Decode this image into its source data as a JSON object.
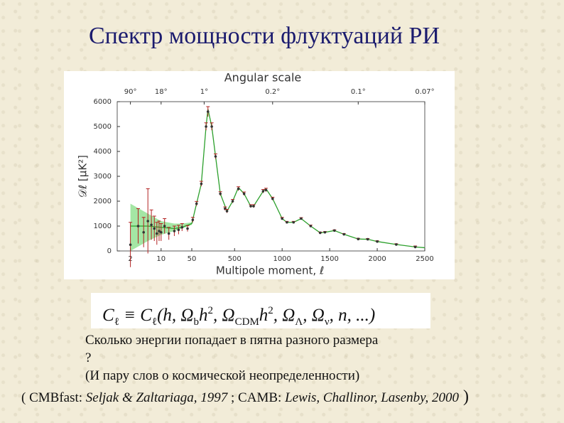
{
  "slide_title": "Спектр мощности флуктуаций РИ",
  "chart_data": {
    "type": "errorbar",
    "title": "Angular scale",
    "xlabel": "Multipole moment, ℓ",
    "ylabel": "𝒟ℓ [μK²]",
    "xscale": "log-linear",
    "xlog_max": 50,
    "xlim": [
      1,
      2500
    ],
    "ylim": [
      0,
      6000
    ],
    "xticks": [
      2,
      10,
      50,
      500,
      1000,
      1500,
      2000,
      2500
    ],
    "yticks": [
      0,
      1000,
      2000,
      3000,
      4000,
      5000,
      6000
    ],
    "top_ticks": [
      {
        "value": 2,
        "label": "90°"
      },
      {
        "value": 10,
        "label": "18°"
      },
      {
        "value": 180,
        "label": "1°"
      },
      {
        "value": 900,
        "label": "0.2°"
      },
      {
        "value": 1800,
        "label": "0.1°"
      },
      {
        "value": 2500,
        "label": "0.07°"
      }
    ],
    "series": [
      {
        "name": "data",
        "color": "#b22222",
        "x": [
          2,
          3,
          4,
          5,
          6,
          7,
          8,
          9,
          10,
          12,
          15,
          20,
          25,
          30,
          40,
          60,
          100,
          150,
          200,
          220,
          260,
          300,
          350,
          400,
          420,
          480,
          540,
          600,
          670,
          700,
          800,
          830,
          900,
          1000,
          1050,
          1120,
          1200,
          1300,
          1400,
          1450,
          1550,
          1650,
          1800,
          1900,
          2000,
          2200,
          2400
        ],
        "values": [
          250,
          1000,
          750,
          1200,
          1050,
          900,
          700,
          800,
          750,
          1000,
          700,
          800,
          850,
          950,
          900,
          1250,
          1900,
          2700,
          5000,
          5600,
          5000,
          3800,
          2300,
          1700,
          1600,
          2000,
          2500,
          2300,
          1800,
          1800,
          2400,
          2450,
          2100,
          1300,
          1150,
          1150,
          1300,
          1000,
          730,
          750,
          820,
          670,
          480,
          470,
          380,
          260,
          160
        ],
        "errors": [
          900,
          700,
          600,
          1300,
          600,
          500,
          450,
          400,
          350,
          300,
          250,
          200,
          180,
          150,
          120,
          100,
          90,
          100,
          150,
          200,
          150,
          100,
          80,
          70,
          70,
          70,
          80,
          70,
          60,
          60,
          70,
          70,
          60,
          50,
          40,
          40,
          40,
          40,
          30,
          30,
          30,
          30,
          30,
          30,
          30,
          30,
          40
        ]
      },
      {
        "name": "theory",
        "color": "#2ca02c",
        "x": [
          2,
          5,
          10,
          20,
          30,
          50,
          100,
          150,
          200,
          220,
          260,
          300,
          350,
          420,
          480,
          540,
          600,
          670,
          700,
          800,
          830,
          900,
          1000,
          1050,
          1120,
          1200,
          1300,
          1400,
          1450,
          1550,
          1650,
          1800,
          1900,
          2000,
          2200,
          2400,
          2500
        ],
        "values": [
          1000,
          1000,
          950,
          900,
          950,
          1100,
          1900,
          2700,
          5000,
          5700,
          5000,
          3800,
          2300,
          1600,
          2000,
          2550,
          2300,
          1800,
          1800,
          2400,
          2500,
          2100,
          1300,
          1150,
          1150,
          1300,
          1000,
          730,
          750,
          820,
          670,
          480,
          470,
          380,
          260,
          160,
          130
        ]
      }
    ],
    "band": {
      "color": "#7ddc7d",
      "x": [
        2,
        5,
        10,
        20,
        30,
        50
      ],
      "lower": [
        0,
        400,
        650,
        800,
        900,
        1050
      ],
      "upper": [
        1900,
        1500,
        1200,
        1100,
        1100,
        1150
      ]
    }
  },
  "formula": [
    "C",
    "ℓ",
    " ≡ C",
    "ℓ",
    "(h, Ω",
    "b",
    "h",
    "2",
    ", Ω",
    "CDM",
    "h",
    "2",
    ", Ω",
    "Λ",
    ", Ω",
    "ν",
    ", n, ...)"
  ],
  "body": [
    "Сколько энергии попадает в пятна разного размера",
    "?",
    "(И пару слов о космической неопределенности)"
  ],
  "citation": [
    "( CMBfast: ",
    "Seljak & Zaltariaga, 1997",
    " ; CAMB: ",
    "Lewis, Challinor, Lasenby, 2000",
    " )"
  ]
}
